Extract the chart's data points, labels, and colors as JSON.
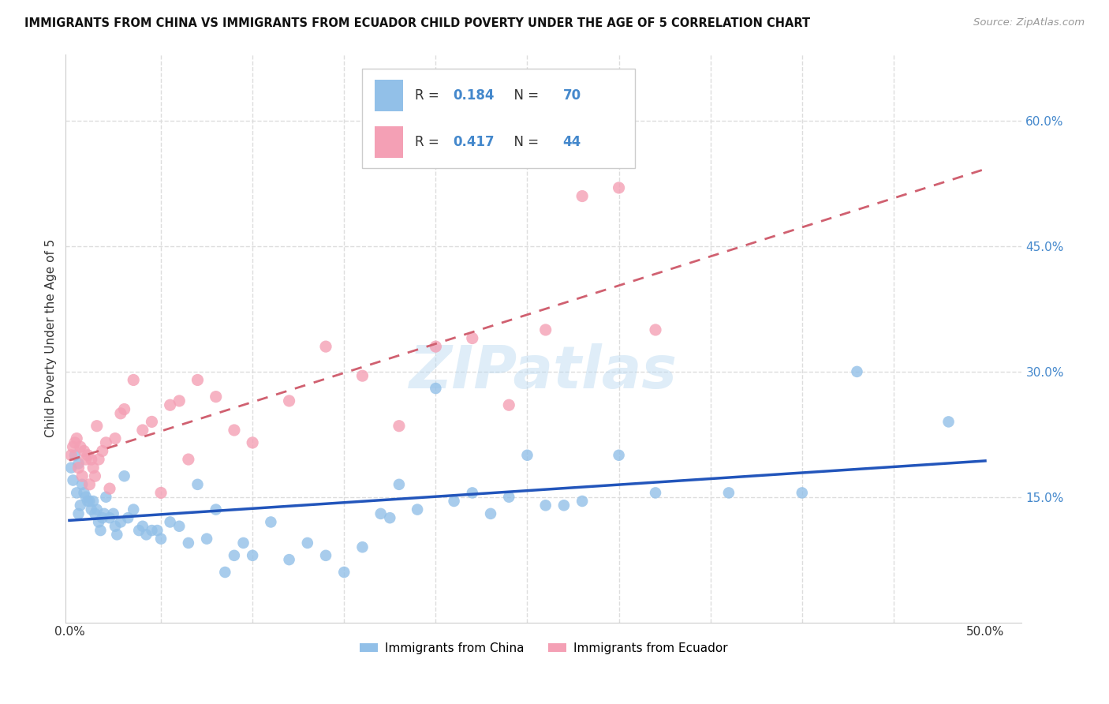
{
  "title": "IMMIGRANTS FROM CHINA VS IMMIGRANTS FROM ECUADOR CHILD POVERTY UNDER THE AGE OF 5 CORRELATION CHART",
  "source": "Source: ZipAtlas.com",
  "ylabel": "Child Poverty Under the Age of 5",
  "y_ticks_right": [
    0.15,
    0.3,
    0.45,
    0.6
  ],
  "y_tick_labels_right": [
    "15.0%",
    "30.0%",
    "45.0%",
    "60.0%"
  ],
  "ylim": [
    0.0,
    0.68
  ],
  "xlim": [
    -0.002,
    0.52
  ],
  "china_color": "#92C0E8",
  "ecuador_color": "#F4A0B5",
  "china_line_color": "#2255BB",
  "ecuador_line_color": "#D06070",
  "china_R": 0.184,
  "china_N": 70,
  "ecuador_R": 0.417,
  "ecuador_N": 44,
  "watermark": "ZIPatlas",
  "background_color": "#ffffff",
  "grid_color": "#dddddd",
  "china_x": [
    0.001,
    0.002,
    0.003,
    0.004,
    0.005,
    0.005,
    0.006,
    0.007,
    0.008,
    0.009,
    0.01,
    0.011,
    0.012,
    0.013,
    0.014,
    0.015,
    0.016,
    0.017,
    0.018,
    0.019,
    0.02,
    0.022,
    0.024,
    0.025,
    0.026,
    0.028,
    0.03,
    0.032,
    0.035,
    0.038,
    0.04,
    0.042,
    0.045,
    0.048,
    0.05,
    0.055,
    0.06,
    0.065,
    0.07,
    0.075,
    0.08,
    0.085,
    0.09,
    0.095,
    0.1,
    0.11,
    0.12,
    0.13,
    0.14,
    0.15,
    0.16,
    0.17,
    0.175,
    0.18,
    0.19,
    0.2,
    0.21,
    0.22,
    0.23,
    0.24,
    0.25,
    0.26,
    0.27,
    0.28,
    0.3,
    0.32,
    0.36,
    0.4,
    0.43,
    0.48
  ],
  "china_y": [
    0.185,
    0.17,
    0.2,
    0.155,
    0.13,
    0.19,
    0.14,
    0.165,
    0.155,
    0.15,
    0.145,
    0.145,
    0.135,
    0.145,
    0.13,
    0.135,
    0.12,
    0.11,
    0.125,
    0.13,
    0.15,
    0.125,
    0.13,
    0.115,
    0.105,
    0.12,
    0.175,
    0.125,
    0.135,
    0.11,
    0.115,
    0.105,
    0.11,
    0.11,
    0.1,
    0.12,
    0.115,
    0.095,
    0.165,
    0.1,
    0.135,
    0.06,
    0.08,
    0.095,
    0.08,
    0.12,
    0.075,
    0.095,
    0.08,
    0.06,
    0.09,
    0.13,
    0.125,
    0.165,
    0.135,
    0.28,
    0.145,
    0.155,
    0.13,
    0.15,
    0.2,
    0.14,
    0.14,
    0.145,
    0.2,
    0.155,
    0.155,
    0.155,
    0.3,
    0.24
  ],
  "ecuador_x": [
    0.001,
    0.002,
    0.003,
    0.004,
    0.005,
    0.006,
    0.007,
    0.008,
    0.009,
    0.01,
    0.011,
    0.012,
    0.013,
    0.014,
    0.015,
    0.016,
    0.018,
    0.02,
    0.022,
    0.025,
    0.028,
    0.03,
    0.035,
    0.04,
    0.045,
    0.05,
    0.055,
    0.06,
    0.065,
    0.07,
    0.08,
    0.09,
    0.1,
    0.12,
    0.14,
    0.16,
    0.18,
    0.2,
    0.22,
    0.24,
    0.26,
    0.28,
    0.3,
    0.32
  ],
  "ecuador_y": [
    0.2,
    0.21,
    0.215,
    0.22,
    0.185,
    0.21,
    0.175,
    0.205,
    0.195,
    0.2,
    0.165,
    0.195,
    0.185,
    0.175,
    0.235,
    0.195,
    0.205,
    0.215,
    0.16,
    0.22,
    0.25,
    0.255,
    0.29,
    0.23,
    0.24,
    0.155,
    0.26,
    0.265,
    0.195,
    0.29,
    0.27,
    0.23,
    0.215,
    0.265,
    0.33,
    0.295,
    0.235,
    0.33,
    0.34,
    0.26,
    0.35,
    0.51,
    0.52,
    0.35
  ],
  "legend_china_label": "R = 0.184   N = 70",
  "legend_ecuador_label": "R = 0.417   N = 44",
  "bottom_legend_china": "Immigrants from China",
  "bottom_legend_ecuador": "Immigrants from Ecuador"
}
